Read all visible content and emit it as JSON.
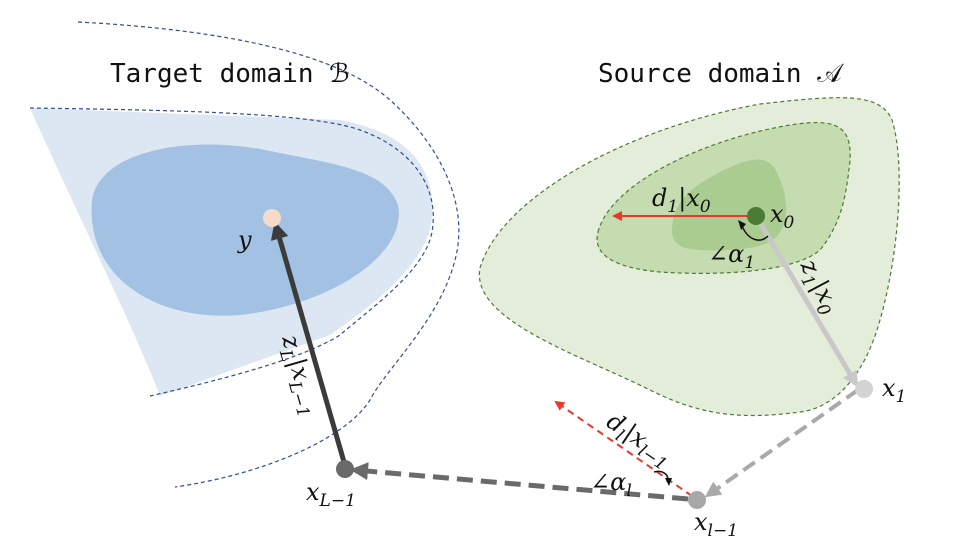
{
  "titles": {
    "target": "Target domain ℬ",
    "source": "Source domain 𝒜"
  },
  "points": {
    "x0": {
      "base": "x",
      "sub": "0"
    },
    "x1": {
      "base": "x",
      "sub": "1"
    },
    "xl_minus_1": {
      "base": "x",
      "sub": "l−1"
    },
    "xL_minus_1": {
      "base": "x",
      "sub": "L−1"
    },
    "y": {
      "base": "y",
      "sub": ""
    }
  },
  "vectors": {
    "d1_given_x0": {
      "base1": "d",
      "sub1": "1",
      "sep": "|",
      "base2": "x",
      "sub2": "0"
    },
    "z1_given_x0": {
      "base1": "z",
      "sub1": "1",
      "sep": "|",
      "base2": "x",
      "sub2": "0"
    },
    "dl_given_xl_minus_1": {
      "base1": "d",
      "sub1": "l",
      "sep": "|",
      "base2": "x",
      "sub2": "l−1"
    },
    "zL_given_xL_minus_1": {
      "base1": "z",
      "sub1": "L",
      "sep": "|",
      "base2": "x",
      "sub2": "L−1"
    }
  },
  "angles": {
    "alpha1": {
      "sym": "∠α",
      "sub": "1"
    },
    "alphal": {
      "sym": "∠α",
      "sub": "l"
    }
  },
  "colors": {
    "target_outer": "#dce7f3",
    "target_inner": "#a3c1e2",
    "target_boundary": "#2e4f8f",
    "source_outer": "#e4edd9",
    "source_inner": "#c5dcb0",
    "source_boundary": "#4e7a34",
    "x0_point": "#4a7a33",
    "y_point": "#f6dcc8",
    "x1_point": "#d3d3d3",
    "xl_point": "#a8a8a8",
    "xL_point": "#6a6a6a",
    "red_vector": "#e53a2a",
    "z1_vector": "#c8c8c8",
    "gray_dashed": "#a9a9a9",
    "dark_dashed": "#6a6a6a",
    "zL_vector": "#3b3b3b"
  }
}
